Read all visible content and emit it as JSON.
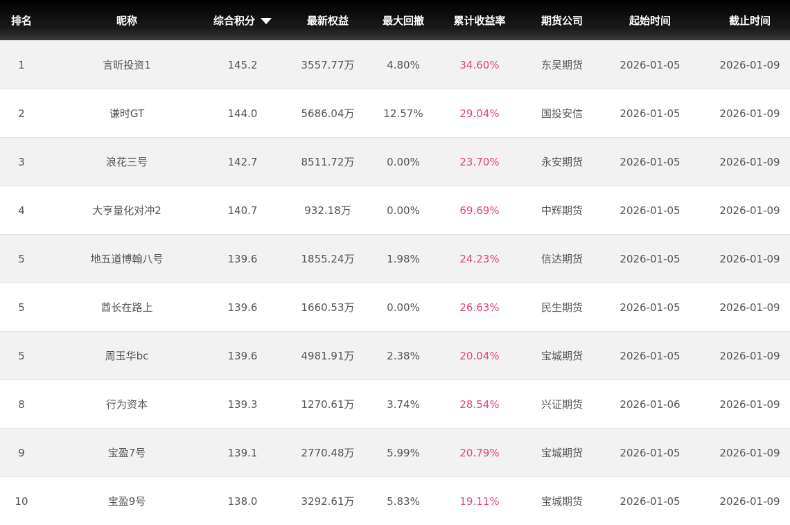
{
  "table": {
    "header": [
      "排名",
      "昵称",
      "综合积分",
      "最新权益",
      "最大回撤",
      "累计收益率",
      "期货公司",
      "起始时间",
      "截止时间"
    ],
    "rows": [
      [
        "1",
        "言昕投资1",
        "145.2",
        "3557.77万",
        "4.80%",
        "34.60%",
        "东吴期货",
        "2026-01-05",
        "2026-01-09"
      ],
      [
        "2",
        "谦时GT",
        "144.0",
        "5686.04万",
        "12.57%",
        "29.04%",
        "国投安信",
        "2026-01-05",
        "2026-01-09"
      ],
      [
        "3",
        "浪花三号",
        "142.7",
        "8511.72万",
        "0.00%",
        "23.70%",
        "永安期货",
        "2026-01-05",
        "2026-01-09"
      ],
      [
        "4",
        "大亨量化对冲2",
        "140.7",
        "932.18万",
        "0.00%",
        "69.69%",
        "中辉期货",
        "2026-01-05",
        "2026-01-09"
      ],
      [
        "5",
        "地五道博翰八号",
        "139.6",
        "1855.24万",
        "1.98%",
        "24.23%",
        "信达期货",
        "2026-01-05",
        "2026-01-09"
      ],
      [
        "5",
        "酋长在路上",
        "139.6",
        "1660.53万",
        "0.00%",
        "26.63%",
        "民生期货",
        "2026-01-05",
        "2026-01-09"
      ],
      [
        "5",
        "周玉华bc",
        "139.6",
        "4981.91万",
        "2.38%",
        "20.04%",
        "宝城期货",
        "2026-01-05",
        "2026-01-09"
      ],
      [
        "8",
        "行为资本",
        "139.3",
        "1270.61万",
        "3.74%",
        "28.54%",
        "兴证期货",
        "2026-01-06",
        "2026-01-09"
      ],
      [
        "9",
        "宝盈7号",
        "139.1",
        "2770.48万",
        "5.99%",
        "20.79%",
        "宝城期货",
        "2026-01-05",
        "2026-01-09"
      ],
      [
        "10",
        "宝盈9号",
        "138.0",
        "3292.61万",
        "5.83%",
        "19.11%",
        "宝城期货",
        "2026-01-05",
        "2026-01-09"
      ]
    ]
  }
}
